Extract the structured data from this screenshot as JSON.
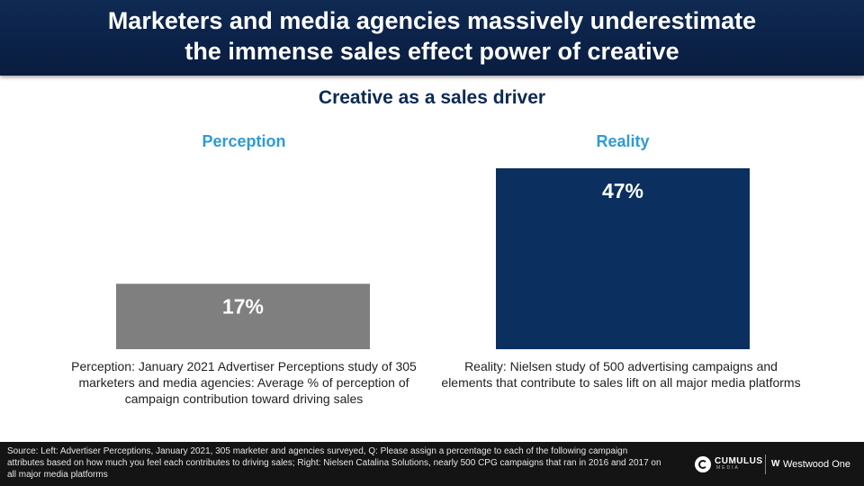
{
  "header": {
    "title_line1": "Marketers and media agencies massively underestimate",
    "title_line2": "the immense sales effect power of creative"
  },
  "chart_data": {
    "type": "bar",
    "title": "Creative as a sales driver",
    "categories": [
      "Perception",
      "Reality"
    ],
    "values": [
      17,
      47
    ],
    "value_labels": [
      "17%",
      "47%"
    ],
    "bar_colors": [
      "#7f7f7f",
      "#0b2f5f"
    ],
    "ylim": [
      0,
      47
    ],
    "xlabel": "",
    "ylabel": ""
  },
  "panels": {
    "perception": {
      "title": "Perception",
      "caption": "Perception: January 2021 Advertiser Perceptions study of 305 marketers and media agencies: Average % of perception of campaign contribution toward driving sales"
    },
    "reality": {
      "title": "Reality",
      "caption": "Reality: Nielsen study of 500 advertising campaigns and elements that contribute to sales lift on all major media platforms"
    }
  },
  "footer": {
    "source": "Source: Left: Advertiser Perceptions, January 2021, 305 marketer and agencies surveyed, Q: Please assign a percentage to each of the following campaign attributes based on how much you feel each contributes to driving sales; Right: Nielsen Catalina Solutions, nearly 500 CPG campaigns that ran in 2016 and 2017 on all major media platforms",
    "logo1_name": "CUMULUS",
    "logo1_sub": "MEDIA",
    "logo2_name": "Westwood One",
    "logo2_mark": "W"
  }
}
